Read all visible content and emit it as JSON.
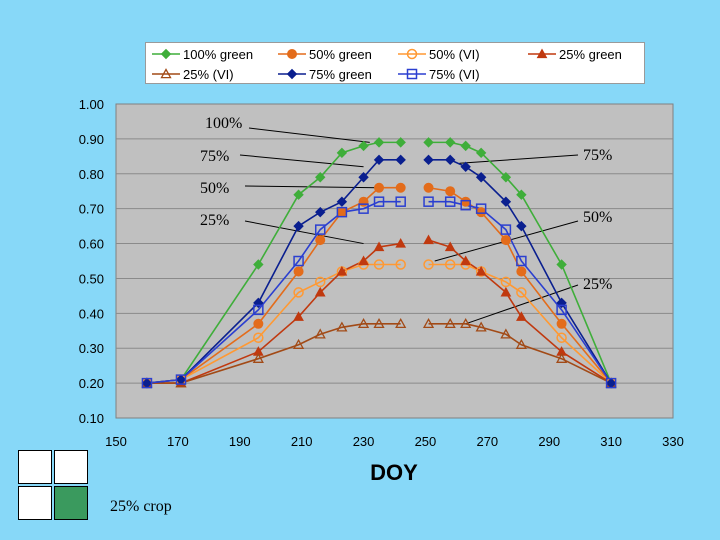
{
  "chart_data": {
    "type": "line",
    "xlabel": "DOY",
    "ylabel": "",
    "xlim": [
      150,
      330
    ],
    "ylim": [
      0.1,
      1.0
    ],
    "xticks": [
      "150",
      "170",
      "190",
      "210",
      "230",
      "250",
      "270",
      "290",
      "310",
      "330"
    ],
    "yticks": [
      "0.10",
      "0.20",
      "0.30",
      "0.40",
      "0.50",
      "0.60",
      "0.70",
      "0.80",
      "0.90",
      "1.00"
    ],
    "grid": true,
    "legend_position": "top",
    "series": [
      {
        "name": "100% green",
        "color": "#3fae3a",
        "marker": "diamond",
        "fill": "#3fae3a",
        "x": [
          160,
          171,
          196,
          209,
          216,
          223,
          230,
          235,
          242,
          251,
          258,
          263,
          268,
          276,
          281,
          294,
          310
        ],
        "y": [
          0.2,
          0.21,
          0.54,
          0.74,
          0.79,
          0.86,
          0.88,
          0.89,
          0.89,
          0.89,
          0.89,
          0.88,
          0.86,
          0.79,
          0.74,
          0.54,
          0.2
        ]
      },
      {
        "name": "50% green",
        "color": "#e36c1b",
        "marker": "circle",
        "fill": "#e36c1b",
        "x": [
          160,
          171,
          196,
          209,
          216,
          223,
          230,
          235,
          242,
          251,
          258,
          263,
          268,
          276,
          281,
          294,
          310
        ],
        "y": [
          0.2,
          0.21,
          0.37,
          0.52,
          0.61,
          0.69,
          0.72,
          0.76,
          0.76,
          0.76,
          0.75,
          0.72,
          0.69,
          0.61,
          0.52,
          0.37,
          0.2
        ]
      },
      {
        "name": "50% (VI)",
        "color": "#ff9933",
        "marker": "circle-open",
        "fill": "none",
        "x": [
          160,
          171,
          196,
          209,
          216,
          223,
          230,
          235,
          242,
          251,
          258,
          263,
          268,
          276,
          281,
          294,
          310
        ],
        "y": [
          0.2,
          0.21,
          0.33,
          0.46,
          0.49,
          0.52,
          0.54,
          0.54,
          0.54,
          0.54,
          0.54,
          0.54,
          0.52,
          0.49,
          0.46,
          0.33,
          0.2
        ]
      },
      {
        "name": "25% green",
        "color": "#c0390f",
        "marker": "triangle",
        "fill": "#c0390f",
        "x": [
          160,
          171,
          196,
          209,
          216,
          223,
          230,
          235,
          242,
          251,
          258,
          263,
          268,
          276,
          281,
          294,
          310
        ],
        "y": [
          0.2,
          0.2,
          0.29,
          0.39,
          0.46,
          0.52,
          0.55,
          0.59,
          0.6,
          0.61,
          0.59,
          0.55,
          0.52,
          0.46,
          0.39,
          0.29,
          0.2
        ]
      },
      {
        "name": "25% (VI)",
        "color": "#a24a16",
        "marker": "triangle-open",
        "fill": "none",
        "x": [
          160,
          171,
          196,
          209,
          216,
          223,
          230,
          235,
          242,
          251,
          258,
          263,
          268,
          276,
          281,
          294,
          310
        ],
        "y": [
          0.2,
          0.2,
          0.27,
          0.31,
          0.34,
          0.36,
          0.37,
          0.37,
          0.37,
          0.37,
          0.37,
          0.37,
          0.36,
          0.34,
          0.31,
          0.27,
          0.2
        ]
      },
      {
        "name": "75% green",
        "color": "#0a1f8f",
        "marker": "diamond",
        "fill": "#0a1f8f",
        "x": [
          160,
          171,
          196,
          209,
          216,
          223,
          230,
          235,
          242,
          251,
          258,
          263,
          268,
          276,
          281,
          294,
          310
        ],
        "y": [
          0.2,
          0.21,
          0.43,
          0.65,
          0.69,
          0.72,
          0.79,
          0.84,
          0.84,
          0.84,
          0.84,
          0.82,
          0.79,
          0.72,
          0.65,
          0.43,
          0.2
        ]
      },
      {
        "name": "75% (VI)",
        "color": "#2b3fd0",
        "marker": "square-open",
        "fill": "none",
        "x": [
          160,
          171,
          196,
          209,
          216,
          223,
          230,
          235,
          242,
          251,
          258,
          263,
          268,
          276,
          281,
          294,
          310
        ],
        "y": [
          0.2,
          0.21,
          0.41,
          0.55,
          0.64,
          0.69,
          0.7,
          0.72,
          0.72,
          0.72,
          0.72,
          0.71,
          0.7,
          0.64,
          0.55,
          0.41,
          0.2
        ]
      }
    ],
    "annotations": [
      {
        "text": "100%",
        "x": 232,
        "y": 0.89
      },
      {
        "text": "75%",
        "x": 230,
        "y": 0.82
      },
      {
        "text": "50%",
        "x": 235,
        "y": 0.76
      },
      {
        "text": "25%",
        "x": 230,
        "y": 0.6
      },
      {
        "text": "75%",
        "x": 261,
        "y": 0.83
      },
      {
        "text": "50%",
        "x": 253,
        "y": 0.55
      },
      {
        "text": "25%",
        "x": 263,
        "y": 0.37
      }
    ]
  },
  "crop_label": "25% crop",
  "crop_grid": {
    "highlight_color": "#3a9a5e",
    "cells": 4,
    "highlighted_cell": 4
  }
}
